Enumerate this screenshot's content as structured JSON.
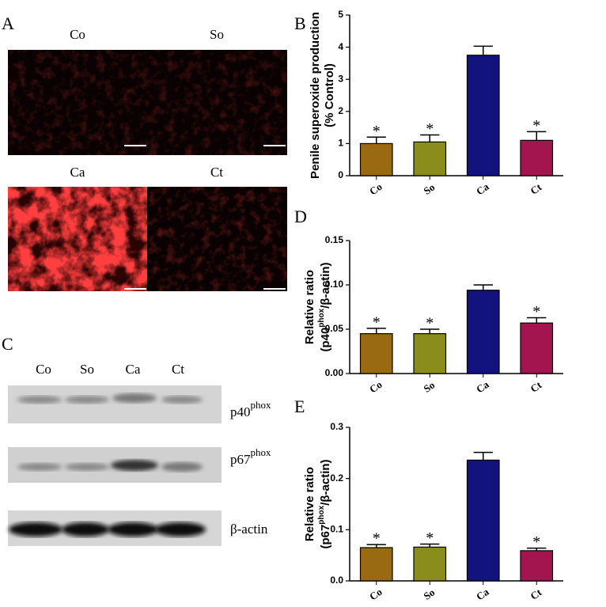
{
  "panels": {
    "A": {
      "letter": "A",
      "labels": [
        "Co",
        "So",
        "Ca",
        "Ct"
      ]
    },
    "C": {
      "letter": "C",
      "lanes": [
        "Co",
        "So",
        "Ca",
        "Ct"
      ],
      "bands": [
        {
          "pre": "p40",
          "sup": "phox"
        },
        {
          "pre": "p67",
          "sup": "phox"
        },
        {
          "pre": "β-actin"
        }
      ]
    }
  },
  "chart_data": [
    {
      "type": "bar",
      "label": "B",
      "ylabel": {
        "line1": "Penile superoxide production",
        "line2": "(% Control)"
      },
      "categories": [
        "Co",
        "So",
        "Ca",
        "Ct"
      ],
      "values": [
        1.0,
        1.05,
        3.75,
        1.1
      ],
      "errors": [
        0.2,
        0.22,
        0.28,
        0.27
      ],
      "significance": [
        "*",
        "*",
        null,
        "*"
      ],
      "colors": [
        "#9a6a12",
        "#8a8c1c",
        "#13137f",
        "#a3154f"
      ],
      "ylim": [
        0,
        5
      ],
      "yticks": [
        0,
        1,
        2,
        3,
        4,
        5
      ]
    },
    {
      "type": "bar",
      "label": "D",
      "ylabel": {
        "line1": "Relative ratio",
        "pre": "(p40",
        "sup": "phox",
        "post": "/β-actin)"
      },
      "categories": [
        "Co",
        "So",
        "Ca",
        "Ct"
      ],
      "values": [
        0.045,
        0.045,
        0.094,
        0.057
      ],
      "errors": [
        0.006,
        0.005,
        0.006,
        0.006
      ],
      "significance": [
        "*",
        "*",
        null,
        "*"
      ],
      "colors": [
        "#9a6a12",
        "#8a8c1c",
        "#13137f",
        "#a3154f"
      ],
      "ylim": [
        0,
        0.15
      ],
      "yticks": [
        {
          "value": 0,
          "label": "0.00"
        },
        {
          "value": 0.05,
          "label": "0.05"
        },
        {
          "value": 0.1,
          "label": "0.10"
        },
        {
          "value": 0.15,
          "label": "0.15"
        }
      ]
    },
    {
      "type": "bar",
      "label": "E",
      "ylabel": {
        "line1": "Relative ratio",
        "pre": "(p67",
        "sup": "phox",
        "post": "/β-actin)"
      },
      "categories": [
        "Co",
        "So",
        "Ca",
        "Ct"
      ],
      "values": [
        0.065,
        0.066,
        0.236,
        0.059
      ],
      "errors": [
        0.006,
        0.006,
        0.015,
        0.005
      ],
      "significance": [
        "*",
        "*",
        null,
        "*"
      ],
      "colors": [
        "#9a6a12",
        "#8a8c1c",
        "#13137f",
        "#a3154f"
      ],
      "ylim": [
        0,
        0.3
      ],
      "yticks": [
        {
          "value": 0,
          "label": "0.0"
        },
        {
          "value": 0.1,
          "label": "0.1"
        },
        {
          "value": 0.2,
          "label": "0.2"
        },
        {
          "value": 0.3,
          "label": "0.3"
        }
      ]
    }
  ]
}
